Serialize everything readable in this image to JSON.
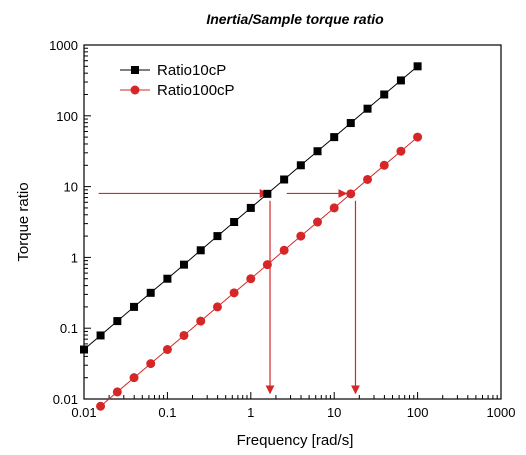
{
  "chart_data": {
    "type": "line",
    "title": "Inertia/Sample torque ratio",
    "xlabel": "Frequency [rad/s]",
    "ylabel": "Torque ratio",
    "xscale": "log",
    "yscale": "log",
    "xlim": [
      0.01,
      1000
    ],
    "ylim": [
      0.01,
      1000
    ],
    "xticks": [
      "0.01",
      "0.1",
      "1",
      "10",
      "100",
      "1000"
    ],
    "yticks": [
      "0.01",
      "0.1",
      "1",
      "10",
      "100",
      "1000"
    ],
    "grid": false,
    "legend": "top-left",
    "series": [
      {
        "name": "Ratio10cP",
        "color": "#000000",
        "marker": "square",
        "x": [
          0.01,
          0.0158,
          0.0251,
          0.0398,
          0.0631,
          0.1,
          0.158,
          0.251,
          0.398,
          0.631,
          1,
          1.58,
          2.51,
          3.98,
          6.31,
          10,
          15.8,
          25.1,
          39.8,
          63.1,
          100
        ],
        "y": [
          0.05,
          0.079,
          0.126,
          0.2,
          0.316,
          0.5,
          0.79,
          1.26,
          2.0,
          3.16,
          5.0,
          7.9,
          12.6,
          20,
          31.6,
          50,
          79,
          126,
          200,
          316,
          500
        ]
      },
      {
        "name": "Ratio100cP",
        "color": "#d62728",
        "marker": "circle",
        "x": [
          0.0158,
          0.0251,
          0.0398,
          0.0631,
          0.1,
          0.158,
          0.251,
          0.398,
          0.631,
          1,
          1.58,
          2.51,
          3.98,
          6.31,
          10,
          15.8,
          25.1,
          39.8,
          63.1,
          100
        ],
        "y": [
          0.0079,
          0.0126,
          0.02,
          0.0316,
          0.05,
          0.079,
          0.126,
          0.2,
          0.316,
          0.5,
          0.79,
          1.26,
          2.0,
          3.16,
          5.0,
          7.9,
          12.6,
          20,
          31.6,
          50
        ]
      }
    ],
    "annotations": [
      {
        "type": "arrow",
        "color": "#d62728",
        "from": [
          0.015,
          8
        ],
        "to": [
          1.6,
          8
        ]
      },
      {
        "type": "arrow",
        "color": "#d62728",
        "from": [
          2.7,
          8
        ],
        "to": [
          14,
          8
        ]
      },
      {
        "type": "arrow",
        "color": "#d62728",
        "from": [
          1.7,
          6.3
        ],
        "to": [
          1.7,
          0.012
        ]
      },
      {
        "type": "arrow",
        "color": "#d62728",
        "from": [
          18,
          6.3
        ],
        "to": [
          18,
          0.012
        ]
      }
    ]
  }
}
